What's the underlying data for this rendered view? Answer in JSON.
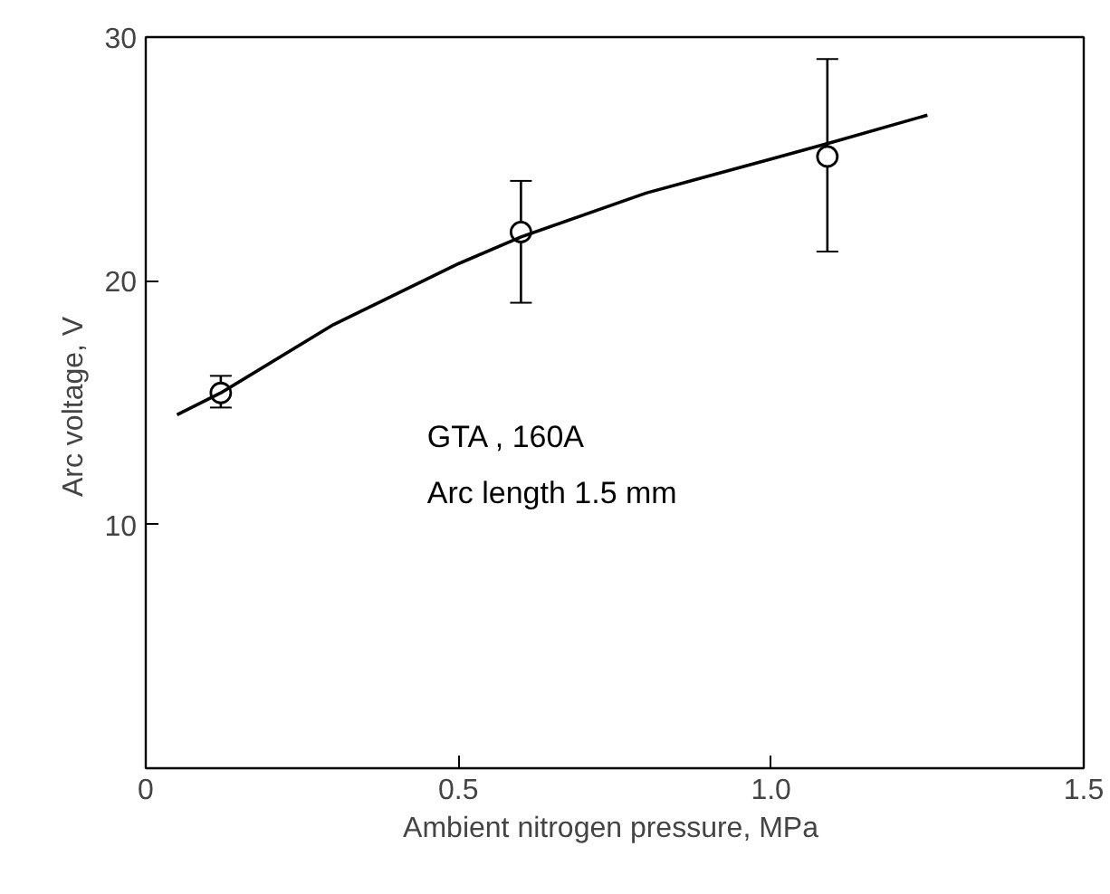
{
  "chart_data": {
    "type": "scatter",
    "xlabel": "Ambient nitrogen pressure,  MPa",
    "ylabel": "Arc voltage,  V",
    "xlim": [
      0,
      1.5
    ],
    "ylim": [
      0,
      30
    ],
    "xticks": [
      0,
      0.5,
      {
        "value": 1.0,
        "label": "1.0"
      },
      1.5
    ],
    "yticks": [
      {
        "value": 0,
        "label": null
      },
      10,
      20,
      30
    ],
    "grid": false,
    "series": [
      {
        "color": "#000000",
        "marker": "circle",
        "x": [
          0.12,
          0.6,
          1.09
        ],
        "values": [
          15.4,
          22.0,
          25.1
        ],
        "errors": [
          [
            14.8,
            16.1
          ],
          [
            19.1,
            24.1
          ],
          [
            21.2,
            29.1
          ]
        ]
      },
      {
        "type": "line",
        "color": "#000000",
        "line_style": "solid",
        "x": [
          0.05,
          0.12,
          0.3,
          0.5,
          0.6,
          0.8,
          1.0,
          1.1,
          1.25
        ],
        "values": [
          14.5,
          15.4,
          18.2,
          20.7,
          21.8,
          23.6,
          25.0,
          25.7,
          26.8
        ]
      }
    ],
    "annotations": [
      "GTA  , 160A",
      "Arc length 1.5 mm"
    ]
  }
}
